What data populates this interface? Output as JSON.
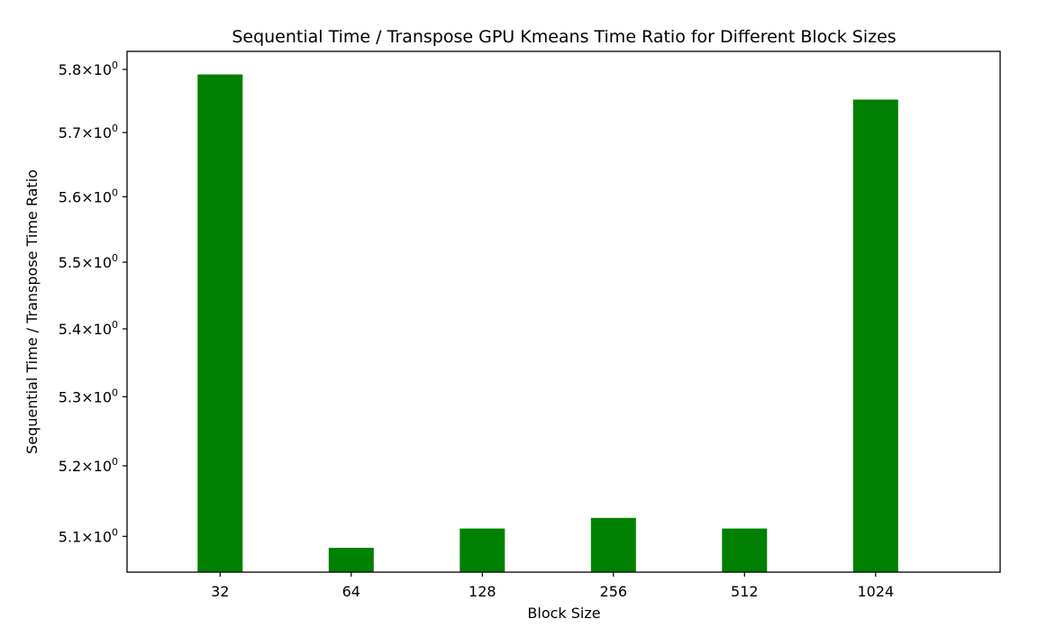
{
  "chart_data": {
    "type": "bar",
    "title": "Sequential Time / Transpose GPU Kmeans Time Ratio for Different Block Sizes",
    "xlabel": "Block Size",
    "ylabel": "Sequential Time / Transpose Time Ratio",
    "yscale": "log",
    "categories": [
      "32",
      "64",
      "128",
      "256",
      "512",
      "1024"
    ],
    "values": [
      5.792,
      5.084,
      5.111,
      5.126,
      5.111,
      5.752
    ],
    "ylim": [
      5.05,
      5.8
    ],
    "yticks": [
      5.1,
      5.2,
      5.3,
      5.4,
      5.5,
      5.6,
      5.7,
      5.8
    ],
    "ytick_labels": [
      {
        "mantissa": "5.1",
        "times": "×",
        "base": "10",
        "exp": "0"
      },
      {
        "mantissa": "5.2",
        "times": "×",
        "base": "10",
        "exp": "0"
      },
      {
        "mantissa": "5.3",
        "times": "×",
        "base": "10",
        "exp": "0"
      },
      {
        "mantissa": "5.4",
        "times": "×",
        "base": "10",
        "exp": "0"
      },
      {
        "mantissa": "5.5",
        "times": "×",
        "base": "10",
        "exp": "0"
      },
      {
        "mantissa": "5.6",
        "times": "×",
        "base": "10",
        "exp": "0"
      },
      {
        "mantissa": "5.7",
        "times": "×",
        "base": "10",
        "exp": "0"
      },
      {
        "mantissa": "5.8",
        "times": "×",
        "base": "10",
        "exp": "0"
      }
    ],
    "bar_color": "#008000",
    "grid": false,
    "legend": "none"
  }
}
